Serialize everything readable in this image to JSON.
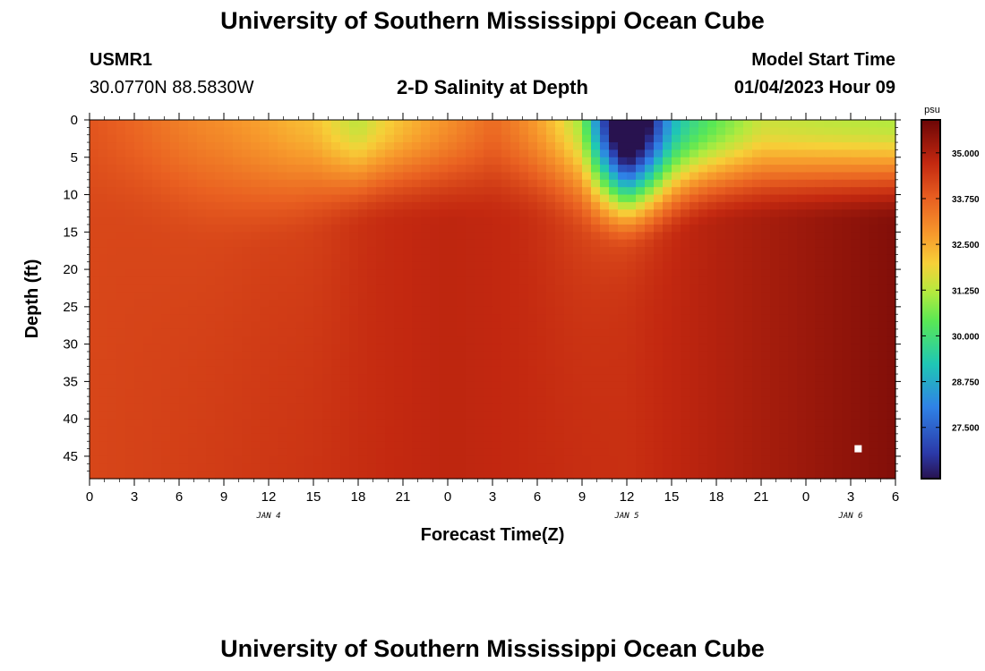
{
  "header": {
    "title": "University of Southern Mississippi Ocean Cube",
    "station_id": "USMR1",
    "station_coords": "30.0770N  88.5830W",
    "plot_title": "2-D Salinity at Depth",
    "model_start_label": "Model Start Time",
    "model_start_value": "01/04/2023 Hour 09"
  },
  "footer": {
    "title": "University of Southern Mississippi Ocean Cube"
  },
  "chart_data": {
    "type": "heatmap",
    "title": "2-D Salinity at Depth",
    "xlabel": "Forecast Time(Z)",
    "ylabel": "Depth (ft)",
    "x_tick_labels": [
      "0",
      "3",
      "6",
      "9",
      "12",
      "15",
      "18",
      "21",
      "0",
      "3",
      "6",
      "9",
      "12",
      "15",
      "18",
      "21",
      "0",
      "3",
      "6"
    ],
    "x_range_hours": [
      0,
      54
    ],
    "date_labels": [
      {
        "label": "JAN 4",
        "hour": 12
      },
      {
        "label": "JAN 5",
        "hour": 36
      },
      {
        "label": "JAN 6",
        "hour": 51
      }
    ],
    "y_ticks": [
      0,
      5,
      10,
      15,
      20,
      25,
      30,
      35,
      40,
      45
    ],
    "ylim": [
      0,
      48
    ],
    "colorbar": {
      "unit": "psu",
      "range": [
        26.1,
        35.9
      ],
      "ticks": [
        "35.000",
        "33.750",
        "32.500",
        "31.250",
        "30.000",
        "28.750",
        "27.500"
      ]
    },
    "marker": {
      "hour": 51.5,
      "depth_ft": 44
    },
    "surface_salinity_psu": [
      {
        "hour": 0,
        "value": 34.0
      },
      {
        "hour": 9,
        "value": 33.5
      },
      {
        "hour": 15,
        "value": 32.8
      },
      {
        "hour": 18,
        "value": 31.5
      },
      {
        "hour": 21,
        "value": 32.3
      },
      {
        "hour": 27,
        "value": 33.6
      },
      {
        "hour": 33,
        "value": 32.5
      },
      {
        "hour": 36,
        "value": 26.5
      },
      {
        "hour": 39,
        "value": 29.5
      },
      {
        "hour": 45,
        "value": 31.5
      },
      {
        "hour": 54,
        "value": 31.2
      }
    ],
    "bottom_salinity_psu": [
      {
        "hour": 0,
        "value": 34.2
      },
      {
        "hour": 24,
        "value": 34.8
      },
      {
        "hour": 36,
        "value": 34.6
      },
      {
        "hour": 54,
        "value": 35.6
      }
    ]
  }
}
